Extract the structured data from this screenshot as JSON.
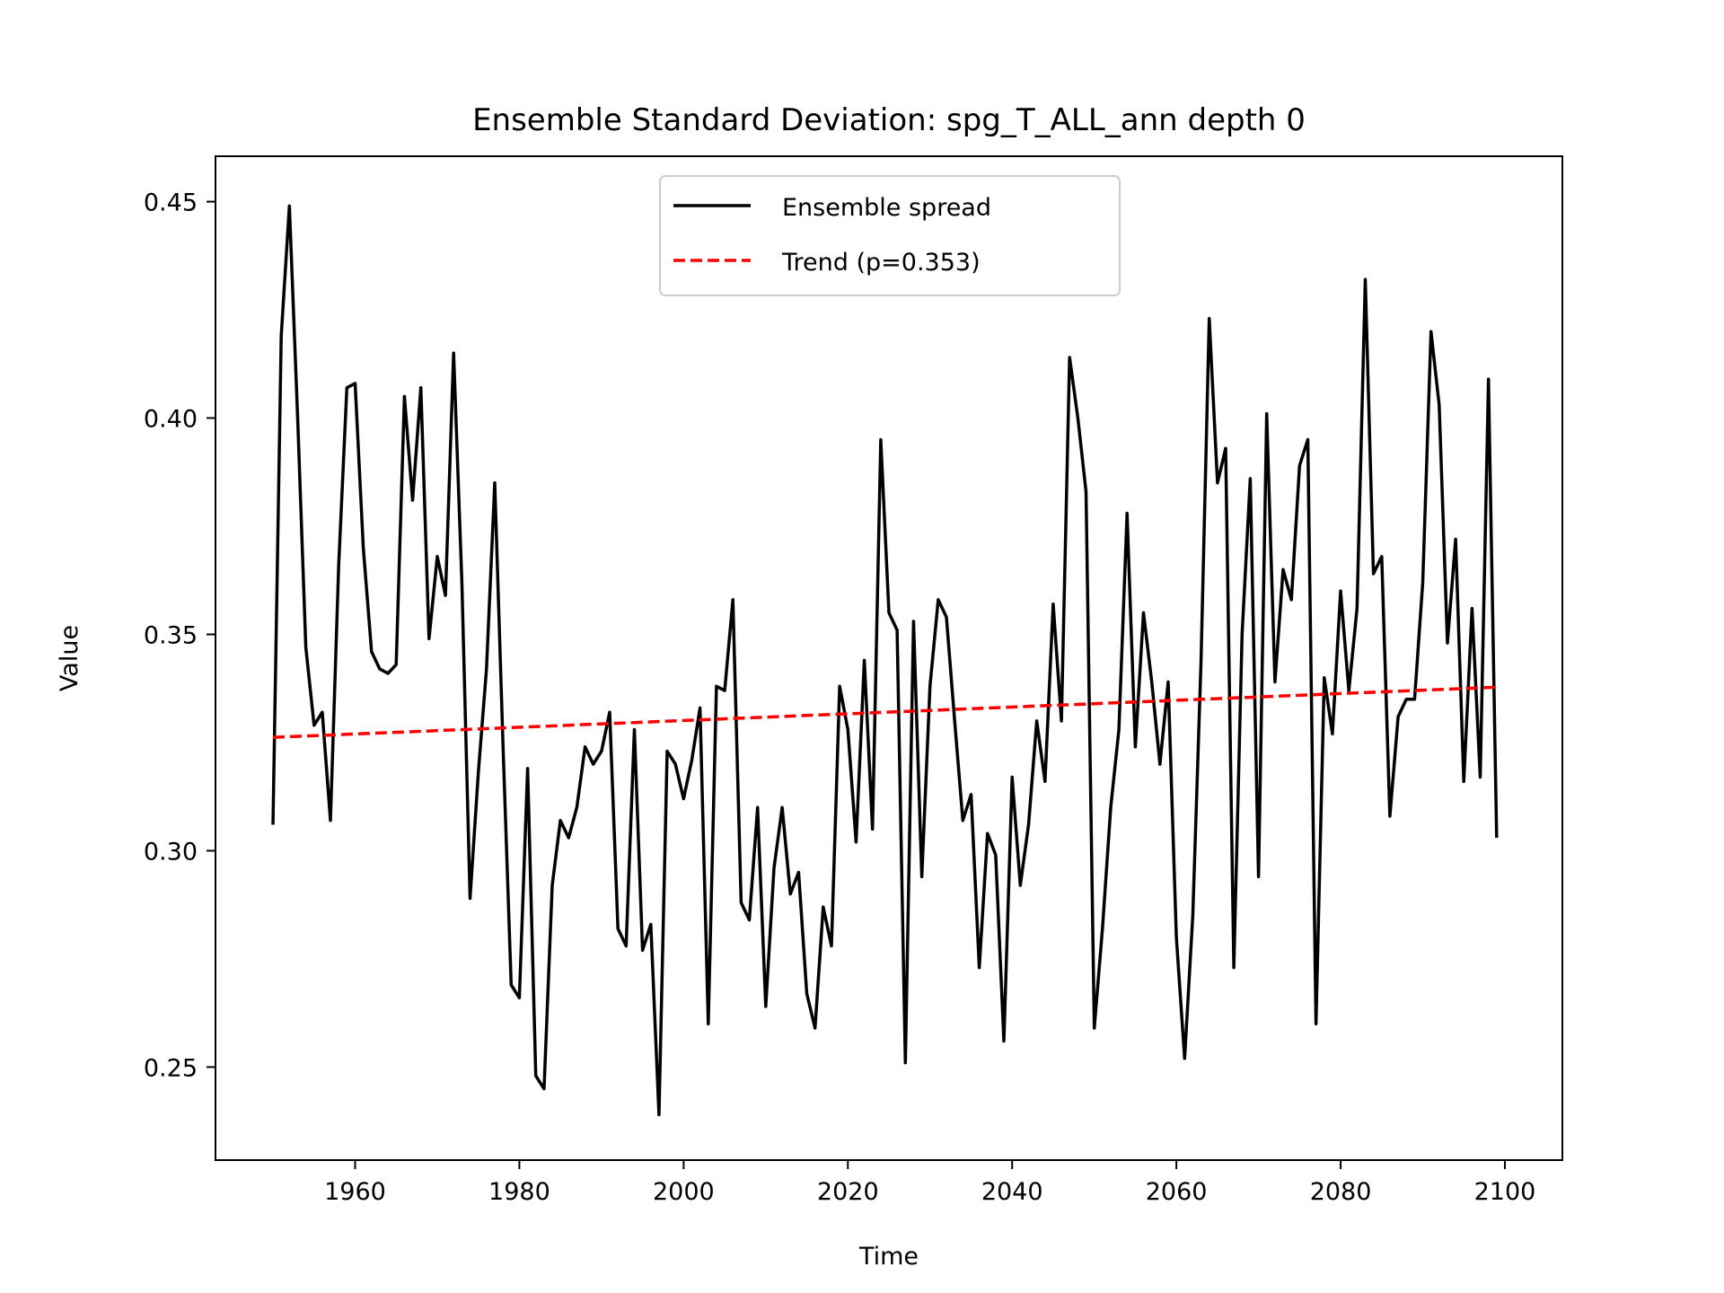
{
  "chart_data": {
    "type": "line",
    "title": "Ensemble Standard Deviation: spg_T_ALL_ann  depth 0",
    "xlabel": "Time",
    "ylabel": "Value",
    "xlim": [
      1943,
      2107
    ],
    "ylim": [
      0.2285,
      0.4605
    ],
    "xticks": [
      1960,
      1980,
      2000,
      2020,
      2040,
      2060,
      2080,
      2100
    ],
    "xtick_labels": [
      "1960",
      "1980",
      "2000",
      "2020",
      "2040",
      "2060",
      "2080",
      "2100"
    ],
    "yticks": [
      0.25,
      0.3,
      0.35,
      0.4,
      0.45
    ],
    "ytick_labels": [
      "0.25",
      "0.30",
      "0.35",
      "0.40",
      "0.45"
    ],
    "grid": false,
    "legend_position": "upper center",
    "series": [
      {
        "name": "Ensemble spread",
        "color": "#000000",
        "style": "solid",
        "x": [
          1950,
          1951,
          1952,
          1953,
          1954,
          1955,
          1956,
          1957,
          1958,
          1959,
          1960,
          1961,
          1962,
          1963,
          1964,
          1965,
          1966,
          1967,
          1968,
          1969,
          1970,
          1971,
          1972,
          1973,
          1974,
          1975,
          1976,
          1977,
          1978,
          1979,
          1980,
          1981,
          1982,
          1983,
          1984,
          1985,
          1986,
          1987,
          1988,
          1989,
          1990,
          1991,
          1992,
          1993,
          1994,
          1995,
          1996,
          1997,
          1998,
          1999,
          2000,
          2001,
          2002,
          2003,
          2004,
          2005,
          2006,
          2007,
          2008,
          2009,
          2010,
          2011,
          2012,
          2013,
          2014,
          2015,
          2016,
          2017,
          2018,
          2019,
          2020,
          2021,
          2022,
          2023,
          2024,
          2025,
          2026,
          2027,
          2028,
          2029,
          2030,
          2031,
          2032,
          2033,
          2034,
          2035,
          2036,
          2037,
          2038,
          2039,
          2040,
          2041,
          2042,
          2043,
          2044,
          2045,
          2046,
          2047,
          2048,
          2049,
          2050,
          2051,
          2052,
          2053,
          2054,
          2055,
          2056,
          2057,
          2058,
          2059,
          2060,
          2061,
          2062,
          2063,
          2064,
          2065,
          2066,
          2067,
          2068,
          2069,
          2070,
          2071,
          2072,
          2073,
          2074,
          2075,
          2076,
          2077,
          2078,
          2079,
          2080,
          2081,
          2082,
          2083,
          2084,
          2085,
          2086,
          2087,
          2088,
          2089,
          2090,
          2091,
          2092,
          2093,
          2094,
          2095,
          2096,
          2097,
          2098,
          2099
        ],
        "y": [
          0.306,
          0.419,
          0.449,
          0.4,
          0.347,
          0.329,
          0.332,
          0.307,
          0.366,
          0.407,
          0.408,
          0.37,
          0.346,
          0.342,
          0.341,
          0.343,
          0.405,
          0.381,
          0.407,
          0.349,
          0.368,
          0.359,
          0.415,
          0.362,
          0.289,
          0.318,
          0.342,
          0.385,
          0.325,
          0.269,
          0.266,
          0.319,
          0.248,
          0.245,
          0.292,
          0.307,
          0.303,
          0.31,
          0.324,
          0.32,
          0.323,
          0.332,
          0.282,
          0.278,
          0.328,
          0.277,
          0.283,
          0.239,
          0.323,
          0.32,
          0.312,
          0.321,
          0.333,
          0.26,
          0.338,
          0.337,
          0.358,
          0.288,
          0.284,
          0.31,
          0.264,
          0.296,
          0.31,
          0.29,
          0.295,
          0.267,
          0.259,
          0.287,
          0.278,
          0.338,
          0.328,
          0.302,
          0.344,
          0.305,
          0.395,
          0.355,
          0.351,
          0.251,
          0.353,
          0.294,
          0.338,
          0.358,
          0.354,
          0.33,
          0.307,
          0.313,
          0.273,
          0.304,
          0.299,
          0.256,
          0.317,
          0.292,
          0.306,
          0.33,
          0.316,
          0.357,
          0.33,
          0.414,
          0.4,
          0.383,
          0.259,
          0.282,
          0.31,
          0.328,
          0.378,
          0.324,
          0.355,
          0.339,
          0.32,
          0.339,
          0.28,
          0.252,
          0.285,
          0.344,
          0.423,
          0.385,
          0.393,
          0.273,
          0.35,
          0.386,
          0.294,
          0.401,
          0.339,
          0.365,
          0.358,
          0.389,
          0.395,
          0.26,
          0.34,
          0.327,
          0.36,
          0.337,
          0.356,
          0.432,
          0.364,
          0.368,
          0.308,
          0.331,
          0.335,
          0.335,
          0.362,
          0.42,
          0.403,
          0.348,
          0.372,
          0.316,
          0.356,
          0.317,
          0.409,
          0.303
        ]
      },
      {
        "name": "Trend (p=0.353)",
        "color": "#ff0000",
        "style": "dashed",
        "x": [
          1950,
          2099
        ],
        "y": [
          0.3262,
          0.3378
        ]
      }
    ]
  }
}
